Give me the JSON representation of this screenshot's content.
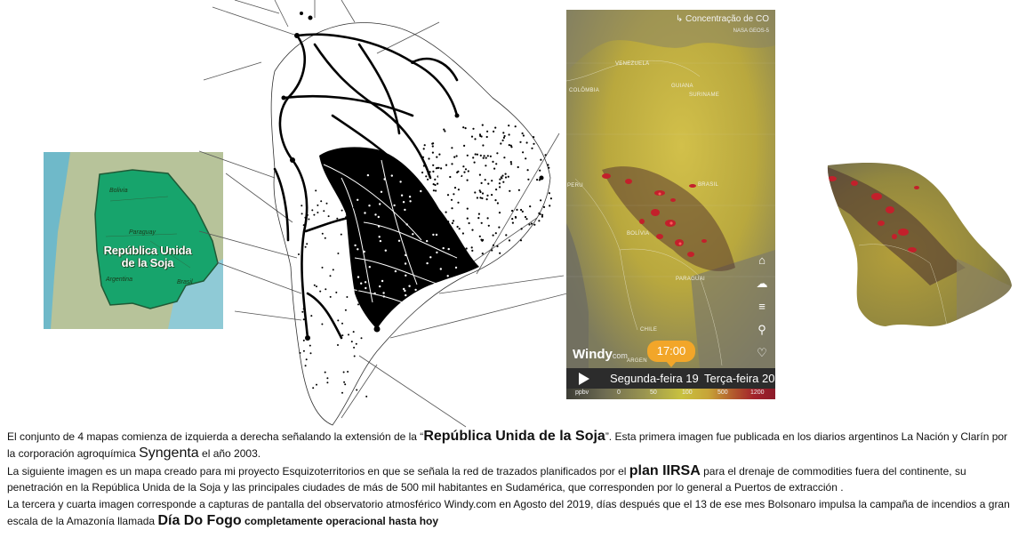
{
  "map1": {
    "labels": {
      "bolivia": "Bolivia",
      "paraguay": "Paraguay",
      "argentina": "Argentina",
      "brasil": "Brasil"
    },
    "title_line1": "República Unida",
    "title_line2": "de la Soja",
    "colors": {
      "sea": "#63b074",
      "land": "#b9c49b",
      "region": "#13a36a"
    }
  },
  "windy": {
    "layer_title": "Concentração de CO",
    "model": "NASA GEOS-5",
    "countries": [
      "VENEZUELA",
      "COLÔMBIA",
      "GUIANA",
      "SURINAME",
      "PERU",
      "BRASIL",
      "BOLÍVIA",
      "PARAGUAI",
      "CHILE",
      "ARGEN"
    ],
    "logo": "Windy",
    "logo_suffix": "com",
    "time": "17:00",
    "day1": "Segunda-feira 19",
    "day2": "Terça-feira 20",
    "scale": {
      "unit": "ppbv",
      "values": [
        "0",
        "50",
        "100",
        "500",
        "1200"
      ]
    },
    "side_icons": [
      "home-icon",
      "weather-icon",
      "menu-icon",
      "search-icon",
      "heart-icon"
    ],
    "colors": {
      "high": "#c3202b",
      "mid": "#c8b845",
      "low": "#6b6a5a"
    }
  },
  "caption": {
    "p1": {
      "a": "El conjunto de 4 mapas comienza de izquierda a derecha señalando la extensión de la “",
      "b": "República Unida de la Soja",
      "c": "”. Esta primera imagen fue publicada en los diarios argentinos La Nación y Clarín por la corporación agroquímica ",
      "d": "Syngenta",
      "e": " el año 2003."
    },
    "p2": {
      "a": "La siguiente imagen es un mapa creado para mi proyecto Esquizoterritorios en que se señala la red de trazados planificados por el ",
      "b": "plan IIRSA",
      "c": " para el drenaje de commodities fuera del continente, su penetración en la República Unida de la Soja y las principales ciudades de más de 500 mil habitantes en Sudamérica, que corresponden por lo general a Puertos de extracción ."
    },
    "p3": {
      "a": "La tercera y cuarta imagen corresponde a capturas de pantalla del observatorio atmosférico Windy.com en Agosto del 2019, días después que el 13 de ese mes Bolsonaro impulsa la campaña de incendios a gran escala de la Amazonía llamada ",
      "b": "Día Do Fogo",
      "c": " completamente operacional hasta hoy"
    }
  }
}
